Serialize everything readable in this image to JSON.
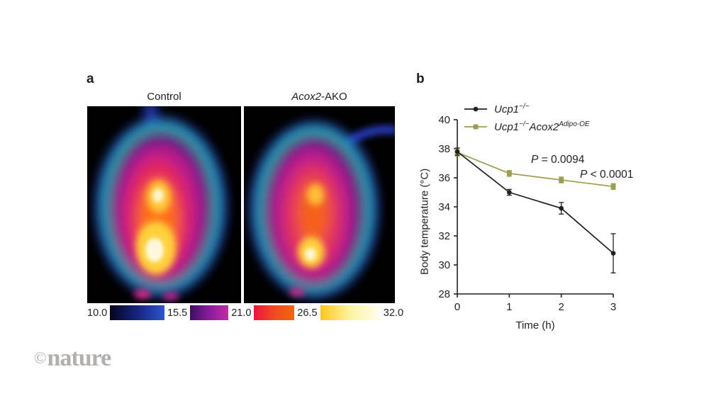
{
  "panel_a": {
    "label": "a",
    "image_titles": [
      {
        "italic": "",
        "rest": "Control"
      },
      {
        "italic": "Acox2",
        "rest": "-AKO"
      }
    ],
    "colorbar": {
      "labels": [
        "10.0",
        "15.5",
        "21.0",
        "26.5",
        "32.0"
      ],
      "gradients": [
        {
          "stops": [
            "#04041c",
            "#16247e",
            "#2d55d2"
          ]
        },
        {
          "stops": [
            "#3c0f60",
            "#8a1c9e",
            "#c52aa5"
          ]
        },
        {
          "stops": [
            "#ee1340",
            "#f04a22",
            "#f3660b"
          ]
        },
        {
          "stops": [
            "#ffc61c",
            "#fdf3a2",
            "#fffdf2"
          ]
        }
      ]
    }
  },
  "panel_b": {
    "label": "b",
    "chart_data": {
      "type": "line",
      "x": [
        0,
        1,
        2,
        3
      ],
      "xlim": [
        0,
        3
      ],
      "ylim": [
        28,
        40
      ],
      "xticks": [
        0,
        1,
        2,
        3
      ],
      "yticks": [
        28,
        30,
        32,
        34,
        36,
        38,
        40
      ],
      "xlabel": "Time (h)",
      "ylabel": "Body temperature (°C)",
      "axis_color": "#231f20",
      "grid": false,
      "legend_position": "top-left-inside",
      "series": [
        {
          "name": "Ucp1−/−",
          "label_parts": [
            {
              "t": "Ucp1"
            },
            {
              "t": "−/−"
            }
          ],
          "color": "#231f20",
          "marker": "circle",
          "values": [
            37.8,
            35.0,
            33.9,
            30.8
          ],
          "errors": [
            0.25,
            0.2,
            0.4,
            1.35
          ]
        },
        {
          "name": "Ucp1−/−Acox2Adipo-OE",
          "label_parts": [
            {
              "t": "Ucp1"
            },
            {
              "t": "−/−"
            },
            {
              "t": "Acox2"
            },
            {
              "t": "Adipo-OE"
            }
          ],
          "color": "#9a9c4e",
          "marker": "square",
          "values": [
            37.75,
            36.3,
            35.85,
            35.4
          ],
          "errors": [
            0.25,
            0.2,
            0.2,
            0.2
          ]
        }
      ],
      "annotations": [
        {
          "p": "P",
          "rest": " = 0.0094"
        },
        {
          "p": "P",
          "rest": " < 0.0001"
        }
      ]
    }
  },
  "footer": {
    "copyright": "©",
    "brand": "nature"
  }
}
